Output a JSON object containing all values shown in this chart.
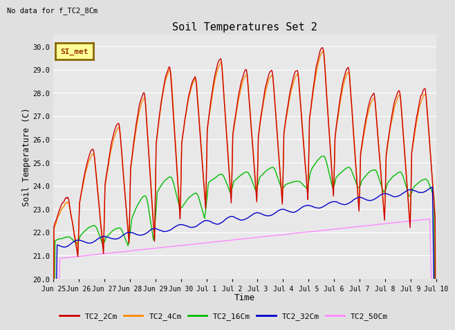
{
  "title": "Soil Temperatures Set 2",
  "subtitle": "No data for f_TC2_8Cm",
  "xlabel": "Time",
  "ylabel": "Soil Temperature (C)",
  "ylim": [
    20.0,
    30.5
  ],
  "yticks": [
    20.0,
    21.0,
    22.0,
    23.0,
    24.0,
    25.0,
    26.0,
    27.0,
    28.0,
    29.0,
    30.0
  ],
  "bg_color": "#e0e0e0",
  "plot_bg_color": "#e8e8e8",
  "fig_bg_color": "#e0e0e0",
  "colors": {
    "TC2_2Cm": "#cc0000",
    "TC2_4Cm": "#ff8800",
    "TC2_16Cm": "#00bb00",
    "TC2_32Cm": "#0000cc",
    "TC2_50Cm": "#ff88ff"
  },
  "legend_label": "SI_met",
  "legend_bg": "#ffff99",
  "legend_border": "#886600",
  "xtick_labels": [
    "Jun 25",
    "Jun 26",
    "Jun 27",
    "Jun 28",
    "Jun 29",
    "Jun 30",
    "Jul 1",
    "Jul 2",
    "Jul 3",
    "Jul 4",
    "Jul 5",
    "Jul 6",
    "Jul 7",
    "Jul 8",
    "Jul 9",
    "Jul 10"
  ],
  "linewidth": 1.0
}
